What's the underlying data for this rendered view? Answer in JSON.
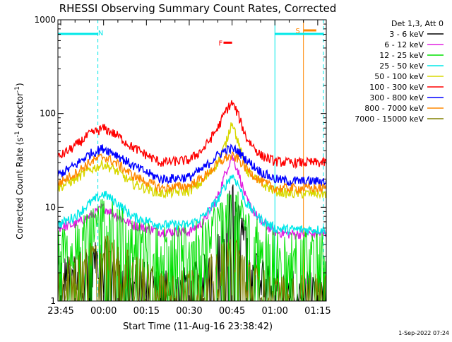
{
  "chart_data": {
    "type": "line",
    "title": "RHESSI Observing Summary Count Rates, Corrected",
    "xlabel": "Start Time (11-Aug-16 23:38:42)",
    "ylabel": "Corrected Count Rate (s⁻¹ detector⁻¹)",
    "ylabel_main": "Corrected Count Rate (s",
    "ylabel_sup1": "-1",
    "ylabel_mid": " detector",
    "ylabel_sup2": "-1",
    "ylabel_end": ")",
    "yscale": "log",
    "ylim": [
      1,
      1000
    ],
    "xlim_minutes": [
      -16,
      78
    ],
    "x_tick_labels": [
      "23:45",
      "00:00",
      "00:15",
      "00:30",
      "00:45",
      "01:00",
      "01:15"
    ],
    "x_tick_minutes": [
      -15,
      0,
      15,
      30,
      45,
      60,
      75
    ],
    "y_tick_labels": [
      "1",
      "10",
      "100",
      "1000"
    ],
    "y_tick_values": [
      1,
      10,
      100,
      1000
    ],
    "legend_title": "Det 1,3, Att 0",
    "legend_position": "right",
    "footer_date": "1-Sep-2022 07:24",
    "series": [
      {
        "name": "3 - 6 keV",
        "color": "#000000",
        "x": [
          -16,
          -10,
          -5,
          0,
          5,
          10,
          20,
          30,
          35,
          40,
          43,
          45,
          47,
          50,
          55,
          60,
          65,
          70,
          75
        ],
        "y": [
          2.0,
          2.2,
          2.6,
          3.2,
          2.6,
          2.0,
          1.6,
          1.6,
          2.0,
          3.5,
          8.0,
          13,
          8.0,
          4.0,
          2.2,
          1.6,
          1.4,
          1.4,
          1.4
        ]
      },
      {
        "name": "6 - 12 keV",
        "color": "#e020e0",
        "x": [
          -16,
          -10,
          -5,
          0,
          5,
          10,
          20,
          30,
          35,
          40,
          43,
          45,
          47,
          50,
          55,
          60,
          65,
          70,
          75
        ],
        "y": [
          6.0,
          6.6,
          8.0,
          10,
          8.0,
          6.5,
          5.5,
          5.5,
          7.0,
          13,
          25,
          35,
          25,
          12,
          7.0,
          5.5,
          5.2,
          5.2,
          5.2
        ]
      },
      {
        "name": "12 - 25 keV",
        "color": "#00e000",
        "x": [
          -16,
          -10,
          -5,
          0,
          5,
          10,
          20,
          30,
          35,
          40,
          43,
          45,
          47,
          50,
          55,
          60,
          65,
          70,
          75
        ],
        "y": [
          4.0,
          4.5,
          6.5,
          9.0,
          7.5,
          5.5,
          4.5,
          4.5,
          5.5,
          8.0,
          10,
          11,
          10,
          7.0,
          5.0,
          4.0,
          3.8,
          3.8,
          3.8
        ]
      },
      {
        "name": "25 - 50 keV",
        "color": "#00e8e8",
        "x": [
          -16,
          -10,
          -5,
          0,
          5,
          10,
          20,
          30,
          35,
          40,
          43,
          45,
          47,
          50,
          55,
          60,
          65,
          70,
          75
        ],
        "y": [
          6.5,
          8.0,
          11,
          14,
          11,
          8.0,
          6.5,
          6.5,
          8.0,
          12,
          18,
          22,
          18,
          11,
          7.5,
          6.0,
          5.8,
          5.8,
          5.8
        ]
      },
      {
        "name": "50 - 100 keV",
        "color": "#d8d800",
        "x": [
          -16,
          -10,
          -5,
          0,
          5,
          10,
          20,
          30,
          35,
          40,
          43,
          45,
          47,
          50,
          55,
          60,
          65,
          70,
          75
        ],
        "y": [
          16,
          20,
          25,
          29,
          24,
          18,
          14,
          15,
          19,
          30,
          50,
          85,
          50,
          25,
          18,
          15,
          14,
          14,
          14
        ]
      },
      {
        "name": "100 - 300 keV",
        "color": "#ff0000",
        "x": [
          -16,
          -10,
          -5,
          0,
          5,
          10,
          20,
          30,
          35,
          40,
          43,
          45,
          47,
          50,
          55,
          60,
          65,
          70,
          75
        ],
        "y": [
          34,
          45,
          60,
          70,
          58,
          44,
          30,
          32,
          42,
          70,
          110,
          130,
          100,
          55,
          36,
          31,
          30,
          30,
          30
        ]
      },
      {
        "name": "300 - 800 keV",
        "color": "#0000ff",
        "x": [
          -16,
          -10,
          -5,
          0,
          5,
          10,
          20,
          30,
          35,
          40,
          43,
          45,
          47,
          50,
          55,
          60,
          65,
          70,
          75
        ],
        "y": [
          22,
          28,
          37,
          43,
          36,
          28,
          20,
          21,
          26,
          36,
          41,
          42,
          40,
          32,
          24,
          20,
          19,
          19,
          19
        ]
      },
      {
        "name": "800 - 7000 keV",
        "color": "#ff8800",
        "x": [
          -16,
          -10,
          -5,
          0,
          5,
          10,
          20,
          30,
          35,
          40,
          43,
          45,
          47,
          50,
          55,
          60,
          65,
          70,
          75
        ],
        "y": [
          18,
          23,
          30,
          35,
          29,
          22,
          16,
          17,
          21,
          29,
          34,
          35,
          33,
          26,
          19,
          16,
          16,
          16,
          16
        ]
      },
      {
        "name": "7000 - 15000 keV",
        "color": "#808000",
        "x": [
          -16,
          -10,
          -5,
          0,
          5,
          10,
          20,
          30,
          35,
          40,
          43,
          45,
          47,
          50,
          55,
          60,
          65,
          70,
          75
        ],
        "y": [
          1.6,
          2.2,
          3.0,
          3.5,
          3.0,
          2.2,
          1.6,
          1.5,
          1.8,
          2.5,
          3.2,
          3.5,
          3.0,
          2.2,
          1.5,
          1.3,
          1.3,
          1.3,
          1.3
        ]
      }
    ],
    "night_bands_minutes": [
      [
        -16,
        -2
      ],
      [
        60,
        77
      ]
    ],
    "vertical_markers": [
      {
        "minute": -2,
        "color": "#00e8e8",
        "style": "dashed"
      },
      {
        "minute": 60,
        "color": "#00e8e8",
        "style": "solid"
      },
      {
        "minute": 77,
        "color": "#00e8e8",
        "style": "dashed"
      },
      {
        "minute": 70,
        "color": "#ff8800",
        "style": "solid"
      }
    ],
    "annotations": [
      {
        "text": "N",
        "color": "#00e8e8",
        "minute": -1
      },
      {
        "text": "F",
        "color": "#ff0000",
        "minute": 41,
        "bar_from": 42,
        "bar_to": 45,
        "bar_level": 570
      },
      {
        "text": "S",
        "color": "#ff8800",
        "minute": 68,
        "bar_from": 70,
        "bar_to": 74.5,
        "bar_level": 770
      }
    ]
  }
}
